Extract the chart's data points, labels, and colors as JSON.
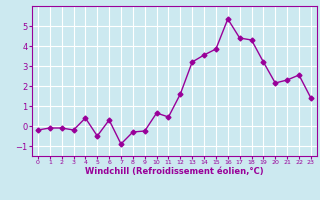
{
  "x": [
    0,
    1,
    2,
    3,
    4,
    5,
    6,
    7,
    8,
    9,
    10,
    11,
    12,
    13,
    14,
    15,
    16,
    17,
    18,
    19,
    20,
    21,
    22,
    23
  ],
  "y": [
    -0.2,
    -0.1,
    -0.1,
    -0.2,
    0.4,
    -0.5,
    0.3,
    -0.9,
    -0.3,
    -0.25,
    0.65,
    0.45,
    1.6,
    3.2,
    3.55,
    3.85,
    5.35,
    4.4,
    4.3,
    3.2,
    2.15,
    2.3,
    2.55,
    1.4
  ],
  "line_color": "#990099",
  "marker": "D",
  "marker_size": 2.5,
  "line_width": 1.0,
  "bg_color": "#cce9f0",
  "grid_color": "#ffffff",
  "xlabel": "Windchill (Refroidissement éolien,°C)",
  "xlabel_color": "#990099",
  "tick_color": "#990099",
  "axis_color": "#990099",
  "ylim": [
    -1.5,
    6.0
  ],
  "xlim": [
    -0.5,
    23.5
  ],
  "yticks": [
    -1,
    0,
    1,
    2,
    3,
    4,
    5
  ],
  "xticks": [
    0,
    1,
    2,
    3,
    4,
    5,
    6,
    7,
    8,
    9,
    10,
    11,
    12,
    13,
    14,
    15,
    16,
    17,
    18,
    19,
    20,
    21,
    22,
    23
  ],
  "xtick_labels": [
    "0",
    "1",
    "2",
    "3",
    "4",
    "5",
    "6",
    "7",
    "8",
    "9",
    "10",
    "11",
    "12",
    "13",
    "14",
    "15",
    "16",
    "17",
    "18",
    "19",
    "20",
    "21",
    "22",
    "23"
  ]
}
